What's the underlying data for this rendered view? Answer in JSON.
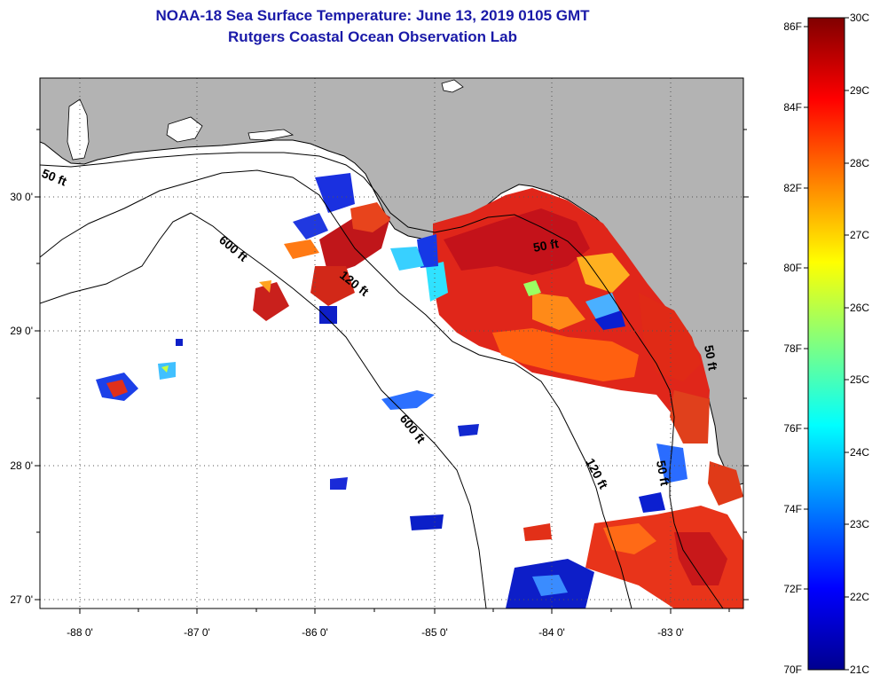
{
  "header": {
    "title": "NOAA-18 Sea Surface Temperature:  June 13, 2019 0105 GMT",
    "subtitle": "Rutgers Coastal Ocean Observation Lab"
  },
  "map": {
    "lon_range": [
      -88.3,
      -82.45
    ],
    "lat_range": [
      26.95,
      30.85
    ],
    "lon_ticks": [
      -88,
      -87,
      -86,
      -85,
      -84,
      -83
    ],
    "lat_ticks": [
      27,
      28,
      29,
      30
    ],
    "lon_tick_labels": [
      "-88 0'",
      "-87 0'",
      "-86 0'",
      "-85 0'",
      "-84 0'",
      "-83 0'"
    ],
    "lat_tick_labels": [
      "27 0'",
      "28 0'",
      "29 0'",
      "30 0'"
    ],
    "land_color": "#b3b3b3",
    "no_data_color": "#ffffff",
    "grid": "dotted"
  },
  "contours": {
    "labels": [
      "50 ft",
      "600 ft",
      "120 ft",
      "50 ft",
      "600 ft",
      "120 ft",
      "50 ft",
      "50 ft"
    ]
  },
  "colorbar": {
    "fahrenheit_labels": [
      "86F",
      "84F",
      "82F",
      "80F",
      "78F",
      "76F",
      "74F",
      "72F",
      "70F"
    ],
    "celsius_labels": [
      "30C",
      "29C",
      "28C",
      "27C",
      "26C",
      "25C",
      "24C",
      "23C",
      "22C",
      "21C"
    ],
    "range_c": [
      21,
      30
    ],
    "palette": "jet",
    "colors": [
      "#00008f",
      "#0000ff",
      "#0080ff",
      "#00ffff",
      "#80ff80",
      "#ffff00",
      "#ff8000",
      "#ff0000",
      "#800000"
    ]
  }
}
